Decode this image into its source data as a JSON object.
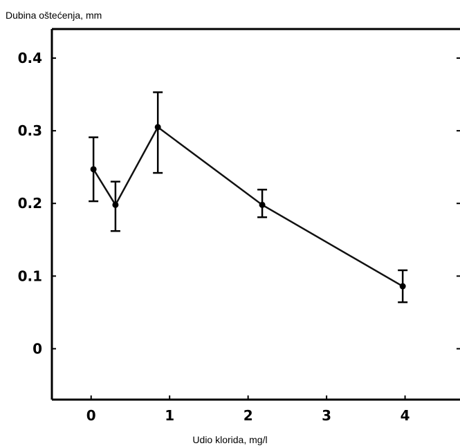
{
  "chart_data": {
    "type": "line",
    "title": "",
    "ylabel": "Dubina oštećenja, mm",
    "xlabel": "Udio klorida, mg/l",
    "xlim": [
      -0.5,
      4.7
    ],
    "ylim": [
      -0.07,
      0.44
    ],
    "x_ticks": [
      0,
      1,
      2,
      3,
      4
    ],
    "x_tick_labels": [
      "0",
      "1",
      "2",
      "3",
      "4"
    ],
    "y_ticks": [
      0,
      0.1,
      0.2,
      0.3,
      0.4
    ],
    "y_tick_labels": [
      "0",
      "0.1",
      "0.2",
      "0.3",
      "0.4"
    ],
    "grid": false,
    "series": [
      {
        "x": [
          0.03,
          0.31,
          0.85,
          2.18,
          3.97
        ],
        "y": [
          0.247,
          0.198,
          0.305,
          0.198,
          0.086
        ],
        "err_low": [
          0.203,
          0.162,
          0.242,
          0.181,
          0.064
        ],
        "err_high": [
          0.291,
          0.23,
          0.353,
          0.219,
          0.108
        ]
      }
    ]
  }
}
